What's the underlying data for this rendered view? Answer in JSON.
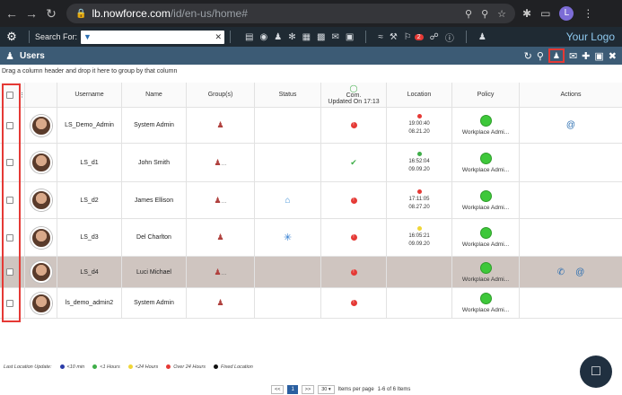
{
  "browser": {
    "url_host": "lb.nowforce.com",
    "url_path": "/id/en-us/home#",
    "profile_initial": "L"
  },
  "toolbar": {
    "search_label": "Search For:",
    "logo": "Your Logo",
    "badge_count": "2"
  },
  "section": {
    "title": "Users"
  },
  "grid": {
    "group_hint": "Drag a column header and drop it here to group by that column",
    "headers": {
      "username": "Username",
      "name": "Name",
      "groups": "Group(s)",
      "status": "Status",
      "com_line1": "Com.",
      "com_line2": "Updated On 17:13",
      "location": "Location",
      "policy": "Policy",
      "actions": "Actions"
    },
    "rows": [
      {
        "username": "LS_Demo_Admin",
        "name": "System Admin",
        "group": "icon",
        "status": "",
        "com": "alert",
        "loc_color": "#e53935",
        "loc_time1": "19:00:40",
        "loc_time2": "08.21.20",
        "policy": "Workplace Admi...",
        "actions": [
          "email"
        ]
      },
      {
        "username": "LS_d1",
        "name": "John Smith",
        "group": "icon-more",
        "status": "",
        "com": "ok",
        "loc_color": "#3fae49",
        "loc_time1": "16:52:04",
        "loc_time2": "09.09.20",
        "policy": "Workplace Admi...",
        "actions": []
      },
      {
        "username": "LS_d2",
        "name": "James Ellison",
        "group": "icon-more",
        "status": "home",
        "com": "alert",
        "loc_color": "#e53935",
        "loc_time1": "17:11:05",
        "loc_time2": "08.27.20",
        "policy": "Workplace Admi...",
        "actions": []
      },
      {
        "username": "LS_d3",
        "name": "Del Charlton",
        "group": "icon",
        "status": "sun",
        "com": "alert",
        "loc_color": "#f0d637",
        "loc_time1": "16:05:21",
        "loc_time2": "09.09.20",
        "policy": "Workplace Admi...",
        "actions": []
      },
      {
        "username": "LS_d4",
        "name": "Luci Michael",
        "group": "icon-more",
        "status": "",
        "com": "alert",
        "loc_color": "",
        "loc_time1": "",
        "loc_time2": "",
        "policy": "Workplace Admi...",
        "actions": [
          "phone",
          "email"
        ]
      },
      {
        "username": "ls_demo_admin2",
        "name": "System Admin",
        "group": "icon",
        "status": "",
        "com": "alert",
        "loc_color": "",
        "loc_time1": "",
        "loc_time2": "",
        "policy": "Workplace Admi...",
        "actions": []
      }
    ]
  },
  "legend": {
    "title": "Last Location Update:",
    "items": [
      {
        "label": "<10 min",
        "color": "#2b3ca8"
      },
      {
        "label": "<1 Hours",
        "color": "#3fae49"
      },
      {
        "label": "<24 Hours",
        "color": "#f0d637"
      },
      {
        "label": "Over 24 Hours",
        "color": "#e53935"
      },
      {
        "label": "Fixed Location",
        "color": "#111111"
      }
    ]
  },
  "pager": {
    "first": "<<",
    "current": "1",
    "next": ">>",
    "page_size": "30",
    "per_page_text": "Items per page",
    "range_text": "1-6 of 6 Items"
  }
}
